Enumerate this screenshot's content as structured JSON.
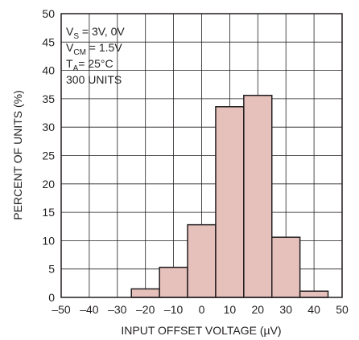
{
  "chart_data": {
    "type": "bar",
    "title": "",
    "xlabel": "INPUT OFFSET VOLTAGE (µV)",
    "ylabel": "PERCENT OF UNITS (%)",
    "xlim": [
      -50,
      50
    ],
    "ylim": [
      0,
      50
    ],
    "x_ticks": [
      "–50",
      "–40",
      "–30",
      "–20",
      "–10",
      "0",
      "10",
      "20",
      "30",
      "40",
      "50"
    ],
    "y_ticks": [
      "0",
      "5",
      "10",
      "15",
      "20",
      "25",
      "30",
      "35",
      "40",
      "45",
      "50"
    ],
    "grid": true,
    "bars": [
      {
        "x0": -25,
        "x1": -15,
        "value": 1.5
      },
      {
        "x0": -15,
        "x1": -5,
        "value": 5.3
      },
      {
        "x0": -5,
        "x1": 5,
        "value": 12.8
      },
      {
        "x0": 5,
        "x1": 15,
        "value": 33.6
      },
      {
        "x0": 15,
        "x1": 25,
        "value": 35.6
      },
      {
        "x0": 25,
        "x1": 35,
        "value": 10.6
      },
      {
        "x0": 35,
        "x1": 45,
        "value": 1.1
      }
    ],
    "bar_fill": "#e6c0bb",
    "bar_stroke": "#231f20",
    "conditions": {
      "vs": {
        "main": "V",
        "sub": "S",
        "rest": " = 3V, 0V"
      },
      "vcm": {
        "main": "V",
        "sub": "CM",
        "rest": " = 1.5V"
      },
      "ta": {
        "main": "T",
        "sub": "A",
        "rest": "= 25°C"
      },
      "units": "300 UNITS"
    }
  }
}
